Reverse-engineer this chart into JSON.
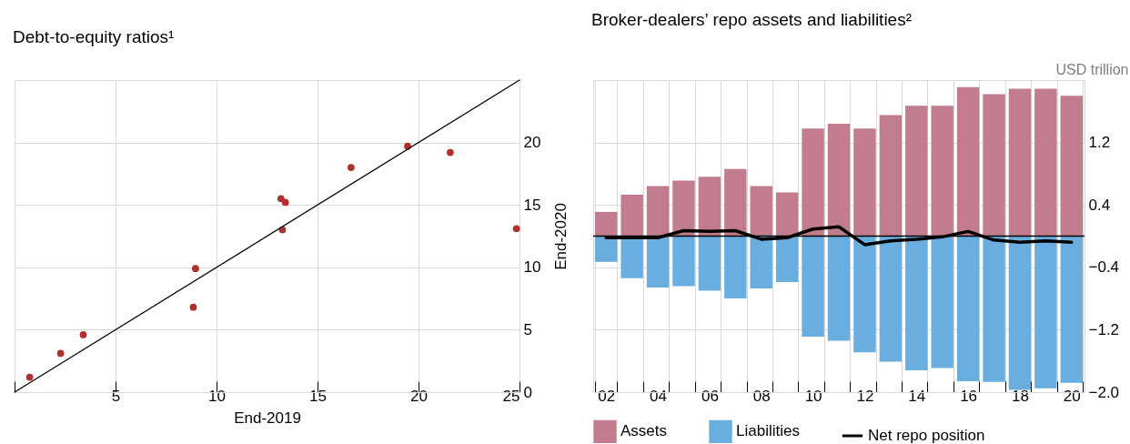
{
  "chart_data": [
    {
      "type": "scatter",
      "title": "Debt-to-equity ratios¹",
      "xlabel": "End-2019",
      "ylabel": "End-2020",
      "xlim": [
        0,
        25
      ],
      "xticks": [
        {
          "value": 0,
          "label": null
        },
        5,
        10,
        15,
        20,
        25
      ],
      "ylim": [
        0,
        25
      ],
      "yticks": [
        0,
        5,
        10,
        15,
        20
      ],
      "grid": true,
      "series": [
        {
          "marker": "circle",
          "color": "#b0302e",
          "x": [
            0.75,
            2.28,
            3.4,
            8.85,
            8.96,
            13.19,
            13.41,
            13.26,
            16.66,
            19.46,
            21.57,
            24.85
          ],
          "values": [
            1.2,
            3.1,
            4.6,
            6.8,
            9.9,
            15.5,
            15.2,
            13.0,
            18.0,
            19.7,
            19.2,
            13.1
          ]
        },
        {
          "type": "line",
          "color": "#000000",
          "x": [
            0,
            25
          ],
          "values": [
            0,
            25
          ]
        }
      ]
    },
    {
      "type": "bar",
      "title": "Broker-dealers’ repo assets and liabilities²",
      "ylabel": "USD trillion",
      "categories": [
        "02",
        null,
        "04",
        null,
        "06",
        null,
        "08",
        null,
        "10",
        null,
        "12",
        null,
        "14",
        null,
        "16",
        null,
        "18",
        null,
        "20"
      ],
      "stacked": true,
      "ylim": [
        -2.0,
        2.0
      ],
      "yticks": [
        {
          "value": -2,
          "label": "−2.0"
        },
        {
          "value": -1.2,
          "label": "−1.2"
        },
        {
          "value": -0.4,
          "label": "−0.4"
        },
        0.4,
        1.2
      ],
      "grid": true,
      "legend": "bottom",
      "ref_lines": [
        {
          "axis": "y",
          "value": 0,
          "color": "#000000"
        }
      ],
      "series": [
        {
          "name": "Assets",
          "color": "#c17d8d",
          "values": [
            0.31,
            0.53,
            0.64,
            0.71,
            0.76,
            0.86,
            0.64,
            0.56,
            1.38,
            1.44,
            1.38,
            1.55,
            1.67,
            1.67,
            1.91,
            1.82,
            1.89,
            1.89,
            1.8
          ]
        },
        {
          "name": "Liabilities",
          "color": "#6aaee0",
          "values": [
            -0.33,
            -0.54,
            -0.66,
            -0.64,
            -0.7,
            -0.8,
            -0.67,
            -0.59,
            -1.29,
            -1.34,
            -1.49,
            -1.61,
            -1.72,
            -1.69,
            -1.86,
            -1.87,
            -1.97,
            -1.95,
            -1.88
          ]
        },
        {
          "name": "Net repo position",
          "type": "line",
          "color": "#000000",
          "values": [
            -0.02,
            -0.02,
            -0.02,
            0.07,
            0.06,
            0.07,
            -0.04,
            -0.02,
            0.09,
            0.12,
            -0.11,
            -0.06,
            -0.04,
            -0.01,
            0.06,
            -0.05,
            -0.08,
            -0.06,
            -0.08
          ]
        }
      ]
    }
  ]
}
